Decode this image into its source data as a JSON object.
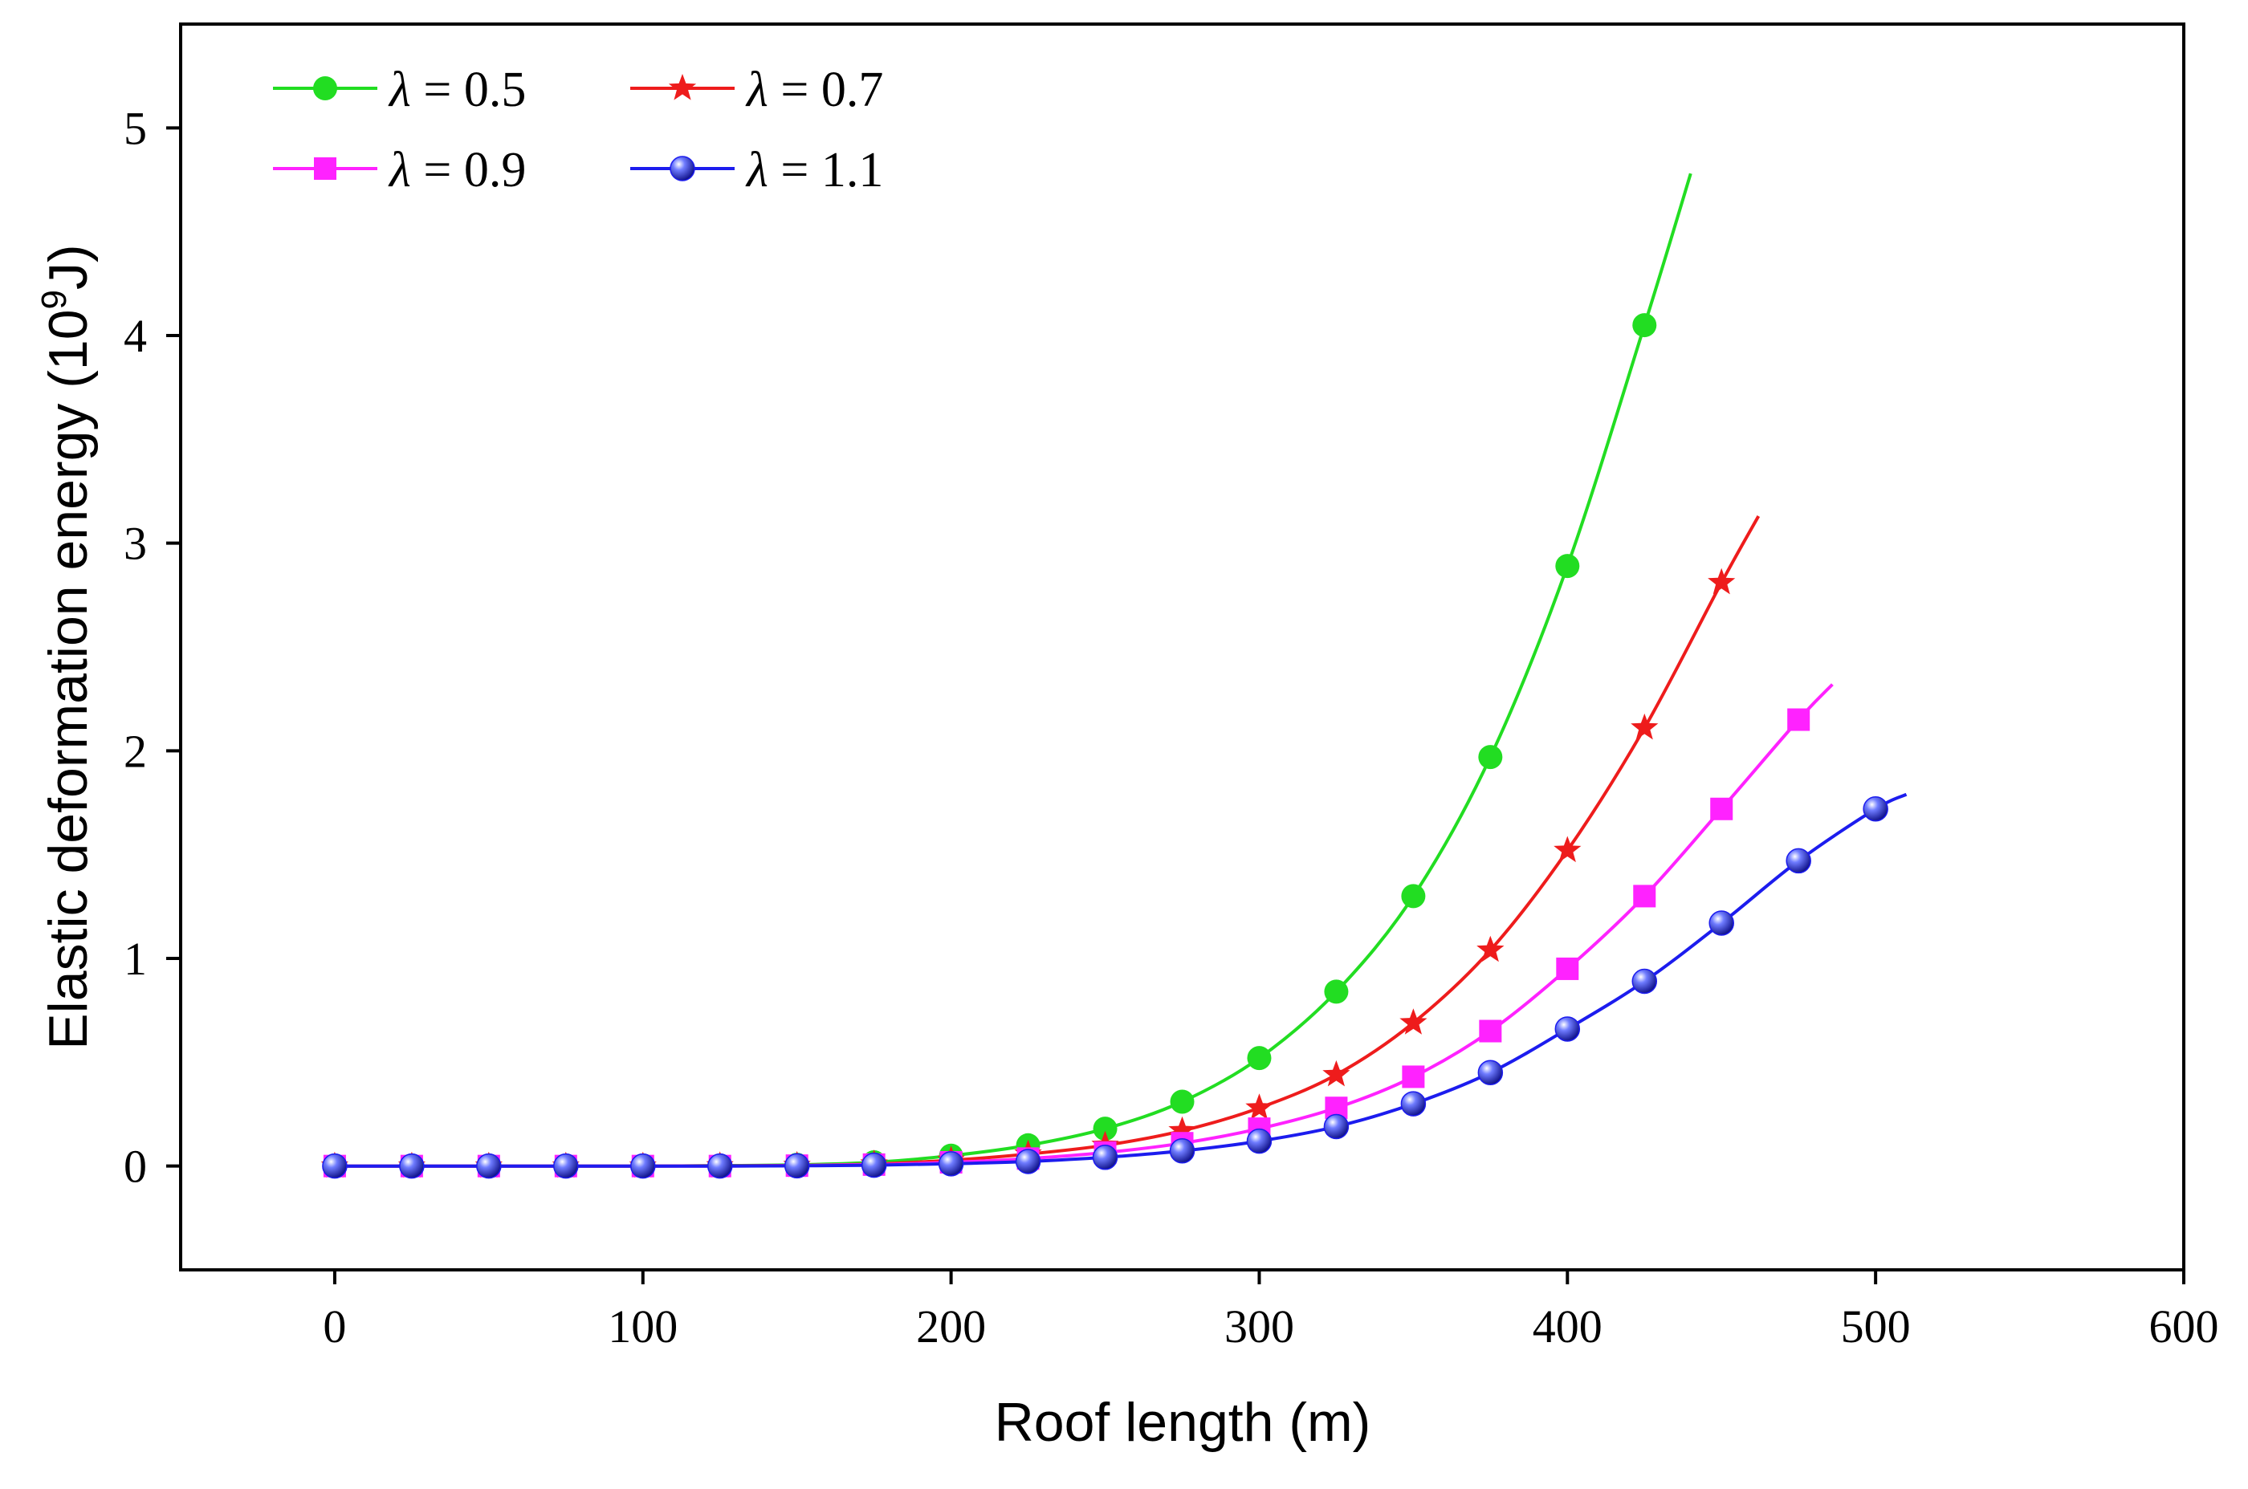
{
  "chart_data": {
    "type": "line",
    "title": "",
    "xlabel": "Roof length (m)",
    "ylabel_main": "Elastic deformation energy (10",
    "ylabel_exp": "9",
    "ylabel_unit": "J)",
    "xlim": [
      -50,
      600
    ],
    "ylim": [
      -0.5,
      5.5
    ],
    "xticks": [
      0,
      100,
      200,
      300,
      400,
      500,
      600
    ],
    "yticks": [
      0,
      1,
      2,
      3,
      4,
      5
    ],
    "x": [
      0,
      25,
      50,
      75,
      100,
      125,
      150,
      175,
      200,
      225,
      250,
      275,
      300,
      325,
      350,
      375,
      400,
      425,
      450,
      475,
      500
    ],
    "legend_symbol": "λ",
    "legend_eq": " = ",
    "series": [
      {
        "name": "0.5",
        "color": "#22dd22",
        "marker": "circle",
        "x": [
          0,
          25,
          50,
          75,
          100,
          125,
          150,
          175,
          200,
          225,
          250,
          275,
          300,
          325,
          350,
          375,
          400,
          425
        ],
        "values": [
          0,
          0,
          0,
          0,
          0,
          0.002,
          0.006,
          0.018,
          0.05,
          0.1,
          0.18,
          0.31,
          0.52,
          0.84,
          1.3,
          1.97,
          2.89,
          4.05
        ],
        "curve_end": [
          440,
          4.78
        ]
      },
      {
        "name": "0.7",
        "color": "#ee1c1c",
        "marker": "star",
        "x": [
          0,
          25,
          50,
          75,
          100,
          125,
          150,
          175,
          200,
          225,
          250,
          275,
          300,
          325,
          350,
          375,
          400,
          425,
          450
        ],
        "values": [
          0,
          0,
          0,
          0,
          0,
          0.001,
          0.003,
          0.01,
          0.028,
          0.058,
          0.1,
          0.17,
          0.28,
          0.44,
          0.69,
          1.04,
          1.52,
          2.11,
          2.81
        ],
        "curve_end": [
          462,
          3.13
        ]
      },
      {
        "name": "0.9",
        "color": "#ff22ff",
        "marker": "square",
        "x": [
          0,
          25,
          50,
          75,
          100,
          125,
          150,
          175,
          200,
          225,
          250,
          275,
          300,
          325,
          350,
          375,
          400,
          425,
          450,
          475
        ],
        "values": [
          0,
          0,
          0,
          0,
          0,
          0,
          0.002,
          0.007,
          0.018,
          0.036,
          0.065,
          0.11,
          0.18,
          0.28,
          0.43,
          0.65,
          0.95,
          1.3,
          1.72,
          2.15
        ],
        "curve_end": [
          486,
          2.32
        ]
      },
      {
        "name": "1.1",
        "color": "#1c1cee",
        "marker": "sphere",
        "x": [
          0,
          25,
          50,
          75,
          100,
          125,
          150,
          175,
          200,
          225,
          250,
          275,
          300,
          325,
          350,
          375,
          400,
          425,
          450,
          475,
          500
        ],
        "values": [
          0,
          0,
          0,
          0,
          0,
          0,
          0.001,
          0.004,
          0.011,
          0.022,
          0.042,
          0.073,
          0.12,
          0.19,
          0.3,
          0.45,
          0.66,
          0.89,
          1.17,
          1.47,
          1.72
        ],
        "curve_end": [
          510,
          1.79
        ]
      }
    ],
    "legend_position": "top-left"
  }
}
